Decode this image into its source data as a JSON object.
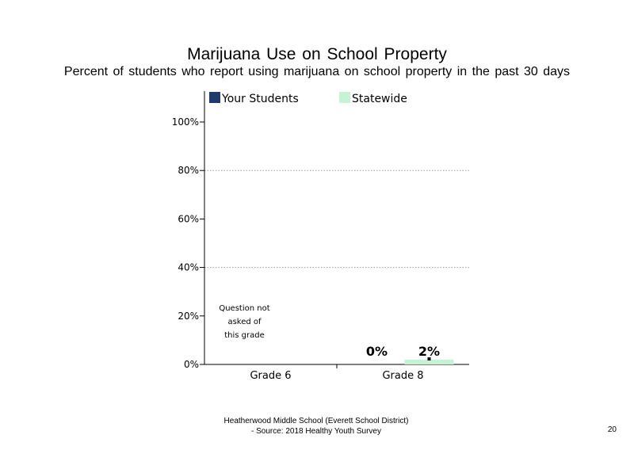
{
  "chart_data": {
    "type": "bar",
    "title": "Marijuana  Use on School Property",
    "subtitle": "Percent of students  who report using marijuana  on school property in the past 30 days",
    "categories": [
      "Grade 6",
      "Grade 8"
    ],
    "series": [
      {
        "name": "Your Students",
        "color": "#1f3b6e",
        "values": [
          null,
          0
        ],
        "labels": [
          "",
          "0%"
        ]
      },
      {
        "name": "Statewide",
        "color": "#c6f2d6",
        "values": [
          null,
          2
        ],
        "labels": [
          "",
          "2%"
        ]
      }
    ],
    "ylim": [
      0,
      100
    ],
    "yticks": [
      "0%",
      "20%",
      "40%",
      "60%",
      "80%",
      "100%"
    ],
    "grid": true,
    "legend_position": "top",
    "annotation": {
      "category": "Grade 6",
      "lines": [
        "Question not",
        "asked of",
        "this grade"
      ]
    }
  },
  "footer": {
    "line1": "Heatherwood Middle School (Everett School District)",
    "line2": "- Source: 2018 Healthy  Youth Survey"
  },
  "page_number": "20"
}
